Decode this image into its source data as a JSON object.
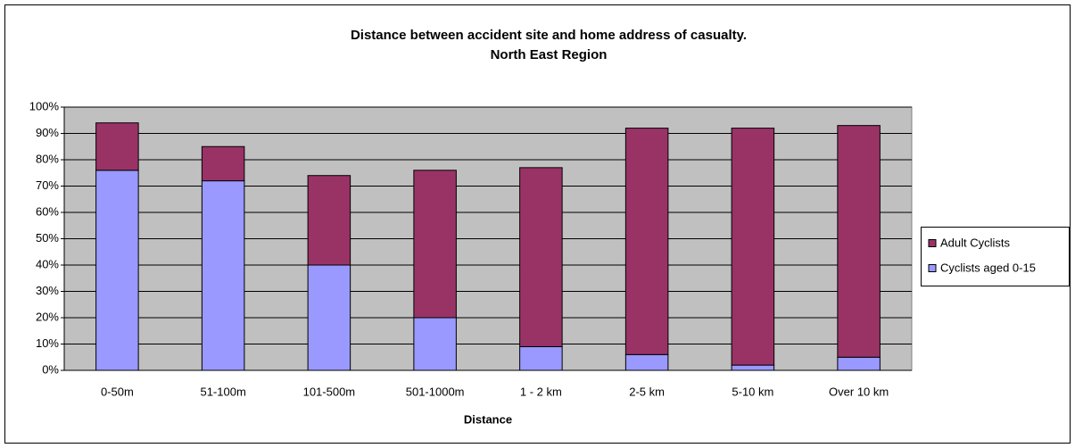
{
  "chart_data": {
    "type": "stacked_bar",
    "title": "Distance between accident site and home address of casualty.",
    "subtitle": "North East Region",
    "x_label": "Distance",
    "categories": [
      "0-50m",
      "51-100m",
      "101-500m",
      "501-1000m",
      "1 - 2 km",
      "2-5 km",
      "5-10 km",
      "Over 10 km"
    ],
    "series": [
      {
        "name": "Cyclists aged 0-15",
        "color": "#9999ff",
        "values": [
          76,
          72,
          40,
          20,
          9,
          6,
          2,
          5
        ]
      },
      {
        "name": "Adult Cyclists",
        "color": "#993366",
        "values": [
          18,
          13,
          34,
          56,
          68,
          86,
          90,
          88
        ]
      }
    ],
    "ylim": [
      0,
      100
    ],
    "yticks": [
      {
        "value": 0,
        "label": "0%"
      },
      {
        "value": 10,
        "label": "10%"
      },
      {
        "value": 20,
        "label": "20%"
      },
      {
        "value": 30,
        "label": "30%"
      },
      {
        "value": 40,
        "label": "40%"
      },
      {
        "value": 50,
        "label": "50%"
      },
      {
        "value": 60,
        "label": "60%"
      },
      {
        "value": 70,
        "label": "70%"
      },
      {
        "value": 80,
        "label": "80%"
      },
      {
        "value": 90,
        "label": "90%"
      },
      {
        "value": 100,
        "label": "100%"
      }
    ],
    "grid": true,
    "legend": "right"
  }
}
